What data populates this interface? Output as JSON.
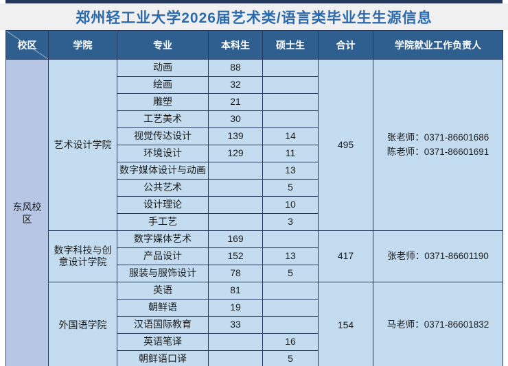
{
  "title": "郑州轻工业大学2026届艺术类/语言类毕业生生源信息",
  "colors": {
    "title_text": "#2a6aad",
    "title_band_bg": "#f0f0f1",
    "header_bg": "#2e5f8e",
    "header_text": "#ffffff",
    "body_cell_bg": "#c3dcf0",
    "campus_cell_bg": "#b7c6e4",
    "border": "#24395c"
  },
  "table": {
    "headers": [
      "校区",
      "学院",
      "专业",
      "本科生",
      "硕士生",
      "合计",
      "学院就业工作负责人"
    ],
    "campus": "东风校区",
    "groups": [
      {
        "college": "艺术设计学院",
        "total": "495",
        "contacts": [
          "张老师：0371-86601686",
          "陈老师：0371-86601691"
        ],
        "majors": [
          {
            "major": "动画",
            "undergrad": "88",
            "master": ""
          },
          {
            "major": "绘画",
            "undergrad": "32",
            "master": ""
          },
          {
            "major": "雕塑",
            "undergrad": "21",
            "master": ""
          },
          {
            "major": "工艺美术",
            "undergrad": "30",
            "master": ""
          },
          {
            "major": "视觉传达设计",
            "undergrad": "139",
            "master": "14"
          },
          {
            "major": "环境设计",
            "undergrad": "129",
            "master": "11"
          },
          {
            "major": "数字媒体设计与动画",
            "undergrad": "",
            "master": "13"
          },
          {
            "major": "公共艺术",
            "undergrad": "",
            "master": "5"
          },
          {
            "major": "设计理论",
            "undergrad": "",
            "master": "10"
          },
          {
            "major": "手工艺",
            "undergrad": "",
            "master": "3"
          }
        ]
      },
      {
        "college": "数字科技与创意设计学院",
        "total": "417",
        "contacts": [
          "张老师：0371-86601190"
        ],
        "majors": [
          {
            "major": "数字媒体艺术",
            "undergrad": "169",
            "master": ""
          },
          {
            "major": "产品设计",
            "undergrad": "152",
            "master": "13"
          },
          {
            "major": "服装与服饰设计",
            "undergrad": "78",
            "master": "5"
          }
        ]
      },
      {
        "college": "外国语学院",
        "total": "154",
        "contacts": [
          "马老师：0371-86601832"
        ],
        "majors": [
          {
            "major": "英语",
            "undergrad": "81",
            "master": ""
          },
          {
            "major": "朝鲜语",
            "undergrad": "19",
            "master": ""
          },
          {
            "major": "汉语国际教育",
            "undergrad": "33",
            "master": ""
          },
          {
            "major": "英语笔译",
            "undergrad": "",
            "master": "16"
          },
          {
            "major": "朝鲜语口译",
            "undergrad": "",
            "master": "5"
          }
        ]
      }
    ]
  }
}
